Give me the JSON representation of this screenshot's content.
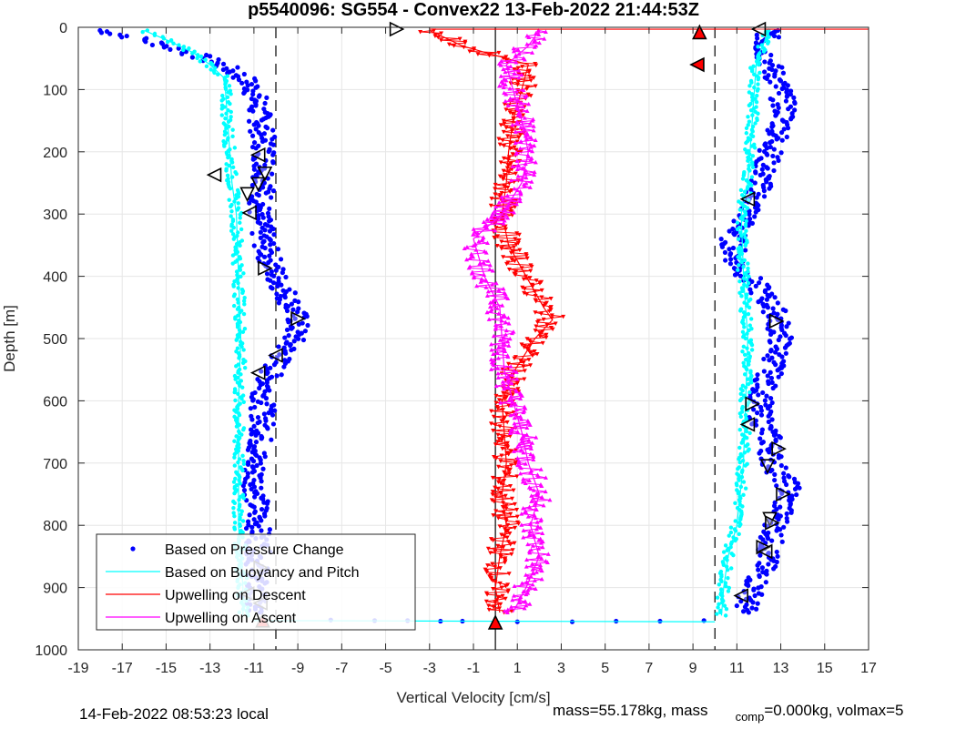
{
  "chart_data": {
    "type": "scatter",
    "title": "p5540096: SG554 - Convex22 13-Feb-2022 21:44:53Z",
    "xlabel": "Vertical Velocity [cm/s]",
    "ylabel": "Depth [m]",
    "xlim": [
      -19,
      17
    ],
    "ylim": [
      0,
      1000
    ],
    "y_reversed": true,
    "grid": true,
    "xticks": [
      -19,
      -17,
      -15,
      -13,
      -11,
      -9,
      -7,
      -5,
      -3,
      -1,
      1,
      3,
      5,
      7,
      9,
      11,
      13,
      15,
      17
    ],
    "yticks": [
      0,
      100,
      200,
      300,
      400,
      500,
      600,
      700,
      800,
      900,
      1000
    ],
    "legend_position": "bottom-left",
    "legend": [
      {
        "label": "Based on Pressure Change",
        "color": "#0000ff",
        "style": "dots"
      },
      {
        "label": "Based on Buoyancy and Pitch",
        "color": "#00ffff",
        "style": "line"
      },
      {
        "label": "Upwelling on Descent",
        "color": "#ff0000",
        "style": "line"
      },
      {
        "label": "Upwelling on Ascent",
        "color": "#ff00ff",
        "style": "line"
      }
    ],
    "reference_lines": [
      {
        "x": 0,
        "style": "solid",
        "color": "#000000"
      },
      {
        "x": -10,
        "style": "dashed",
        "color": "#000000"
      },
      {
        "x": 10,
        "style": "dashed",
        "color": "#000000"
      }
    ],
    "series": [
      {
        "name": "Based on Pressure Change",
        "color": "#0000ff",
        "side": "descent",
        "depth": [
          5,
          20,
          40,
          60,
          80,
          100,
          150,
          200,
          250,
          300,
          350,
          400,
          430,
          470,
          500,
          530,
          560,
          600,
          650,
          700,
          750,
          800,
          850,
          880,
          920,
          940
        ],
        "velocity": [
          -18,
          -16,
          -14,
          -12.5,
          -11.5,
          -11,
          -10.7,
          -10.5,
          -10.5,
          -10.8,
          -10.5,
          -10,
          -9.5,
          -9,
          -9.2,
          -9.8,
          -10.3,
          -10.6,
          -10.6,
          -11,
          -10.9,
          -10.8,
          -10.8,
          -10.9,
          -11,
          -11
        ]
      },
      {
        "name": "Based on Pressure Change",
        "color": "#0000ff",
        "side": "ascent",
        "depth": [
          5,
          30,
          60,
          100,
          140,
          180,
          220,
          260,
          300,
          340,
          380,
          420,
          460,
          500,
          540,
          580,
          620,
          660,
          700,
          740,
          780,
          820,
          860,
          900,
          940
        ],
        "velocity": [
          12.5,
          12.2,
          12.5,
          13,
          13.2,
          12.8,
          12.3,
          12,
          11.5,
          10.8,
          11,
          12,
          12.8,
          13,
          12.7,
          12.2,
          12,
          12.5,
          12.6,
          13.4,
          13,
          12.6,
          12.3,
          11.8,
          11.3
        ]
      },
      {
        "name": "Based on Buoyancy and Pitch",
        "color": "#00ffff",
        "side": "descent",
        "depth": [
          5,
          20,
          40,
          60,
          80,
          100,
          150,
          200,
          250,
          300,
          400,
          500,
          600,
          700,
          800,
          900,
          945
        ],
        "velocity": [
          -16,
          -15,
          -13.8,
          -13,
          -12.4,
          -12.3,
          -12.2,
          -12.1,
          -12,
          -11.8,
          -11.7,
          -11.6,
          -11.7,
          -11.7,
          -11.7,
          -11.5,
          -11.5
        ]
      },
      {
        "name": "Based on Buoyancy and Pitch",
        "color": "#00ffff",
        "side": "ascent",
        "depth": [
          5,
          50,
          100,
          150,
          200,
          250,
          300,
          400,
          500,
          600,
          700,
          800,
          850,
          900,
          945
        ],
        "velocity": [
          12.5,
          11.9,
          11.8,
          11.7,
          11.6,
          11.5,
          11.2,
          11.3,
          11.5,
          11.4,
          11.3,
          11.0,
          10.6,
          10.4,
          10.3
        ]
      },
      {
        "name": "Upwelling on Descent",
        "color": "#ff0000",
        "depth": [
          5,
          30,
          60,
          100,
          150,
          200,
          250,
          300,
          350,
          400,
          450,
          470,
          500,
          550,
          600,
          650,
          700,
          750,
          800,
          850,
          900,
          940
        ],
        "velocity": [
          -3,
          -1.5,
          1.5,
          1.2,
          0.8,
          0.6,
          0.5,
          0.3,
          0.6,
          1.4,
          2.2,
          2.6,
          1.8,
          0.9,
          0.3,
          0.4,
          0.5,
          0.3,
          0.5,
          0.2,
          0.0,
          0.2
        ]
      },
      {
        "name": "Upwelling on Ascent",
        "color": "#ff00ff",
        "depth": [
          5,
          30,
          60,
          100,
          150,
          200,
          250,
          300,
          340,
          400,
          450,
          500,
          550,
          600,
          650,
          700,
          750,
          800,
          850,
          900,
          940
        ],
        "velocity": [
          2,
          1.5,
          0.5,
          0.8,
          1.2,
          1.5,
          1.2,
          0.3,
          -1,
          -0.5,
          0.2,
          0.3,
          0.4,
          0.8,
          1.2,
          1.5,
          2.0,
          1.6,
          2.0,
          1.4,
          0.8
        ]
      },
      {
        "name": "Surface transition",
        "color": "#0000ff",
        "style": "dots",
        "depth": [
          952,
          953,
          953,
          954,
          954,
          955,
          955,
          954,
          954,
          953
        ],
        "velocity": [
          -7.5,
          -5.5,
          -4,
          -2.5,
          -1.5,
          1,
          3.5,
          5.5,
          7.5,
          9.5
        ]
      }
    ],
    "markers": [
      {
        "x": -4.5,
        "y": 3,
        "shape": "triangle-right",
        "fill": "#ffffff"
      },
      {
        "x": 12,
        "y": 3,
        "shape": "triangle-left",
        "fill": "#ffffff"
      },
      {
        "x": 9.3,
        "y": 8,
        "shape": "triangle-up",
        "fill": "#ff0000"
      },
      {
        "x": 9.2,
        "y": 60,
        "shape": "triangle-left",
        "fill": "#ff0000"
      },
      {
        "x": -10.8,
        "y": 205,
        "shape": "triangle-left",
        "fill": "#ffffff"
      },
      {
        "x": -12.8,
        "y": 237,
        "shape": "triangle-left",
        "fill": "#ffffff"
      },
      {
        "x": -10.5,
        "y": 235,
        "shape": "triangle-down",
        "fill": "#ffffff"
      },
      {
        "x": -10.8,
        "y": 252,
        "shape": "triangle-down",
        "fill": "#ffffff"
      },
      {
        "x": -11.3,
        "y": 268,
        "shape": "triangle-down",
        "fill": "#ffffff"
      },
      {
        "x": -11.2,
        "y": 298,
        "shape": "triangle-left",
        "fill": "#ffffff"
      },
      {
        "x": -10.5,
        "y": 387,
        "shape": "triangle-right",
        "fill": "#ffffff"
      },
      {
        "x": -9.0,
        "y": 468,
        "shape": "triangle-right",
        "fill": "#ffffff"
      },
      {
        "x": -10.0,
        "y": 527,
        "shape": "triangle-left",
        "fill": "#ffffff"
      },
      {
        "x": -10.8,
        "y": 555,
        "shape": "triangle-left",
        "fill": "#ffffff"
      },
      {
        "x": -10.7,
        "y": 868,
        "shape": "triangle-right",
        "fill": "#ffffff"
      },
      {
        "x": -11.3,
        "y": 910,
        "shape": "triangle-left",
        "fill": "#ffffff"
      },
      {
        "x": -10.7,
        "y": 925,
        "shape": "triangle-left",
        "fill": "#ffffff"
      },
      {
        "x": -10.6,
        "y": 953,
        "shape": "triangle-up",
        "fill": "#ff0000"
      },
      {
        "x": 0,
        "y": 956,
        "shape": "triangle-up",
        "fill": "#ff0000"
      },
      {
        "x": 11.5,
        "y": 276,
        "shape": "triangle-left",
        "fill": "#ffffff"
      },
      {
        "x": 12.8,
        "y": 472,
        "shape": "triangle-right",
        "fill": "#ffffff"
      },
      {
        "x": 11.7,
        "y": 605,
        "shape": "triangle-right",
        "fill": "#ffffff"
      },
      {
        "x": 11.5,
        "y": 638,
        "shape": "triangle-left",
        "fill": "#ffffff"
      },
      {
        "x": 12.9,
        "y": 677,
        "shape": "triangle-right",
        "fill": "#ffffff"
      },
      {
        "x": 12.4,
        "y": 705,
        "shape": "triangle-down",
        "fill": "#ffffff"
      },
      {
        "x": 13.1,
        "y": 750,
        "shape": "triangle-right",
        "fill": "#ffffff"
      },
      {
        "x": 12.5,
        "y": 790,
        "shape": "triangle-down",
        "fill": "#ffffff"
      },
      {
        "x": 12.6,
        "y": 796,
        "shape": "triangle-right",
        "fill": "#ffffff"
      },
      {
        "x": 12.2,
        "y": 835,
        "shape": "triangle-right",
        "fill": "#ffffff"
      },
      {
        "x": 12.3,
        "y": 842,
        "shape": "triangle-left",
        "fill": "#ffffff"
      },
      {
        "x": 11.2,
        "y": 913,
        "shape": "triangle-left",
        "fill": "#ffffff"
      }
    ]
  },
  "footer": {
    "local_time": "14-Feb-2022 08:53:23 local",
    "mass_pre": "mass=55.178kg, mass",
    "mass_sub": "comp",
    "mass_post": "=0.000kg, volmax=5"
  }
}
